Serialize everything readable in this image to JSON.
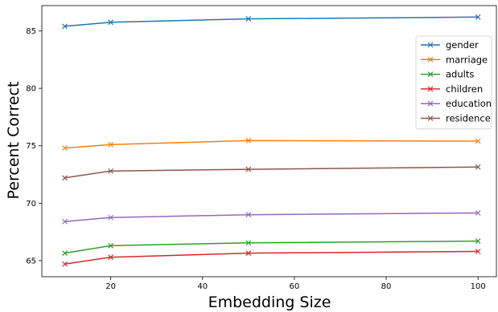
{
  "chart_data": {
    "type": "line",
    "title": "",
    "xlabel": "Embedding Size",
    "ylabel": "Percent Correct",
    "x": [
      10,
      20,
      50,
      100
    ],
    "xlim": [
      5,
      104
    ],
    "ylim": [
      63.6,
      87.2
    ],
    "xticks": [
      20,
      40,
      60,
      80,
      100
    ],
    "yticks": [
      65,
      70,
      75,
      80,
      85
    ],
    "grid": false,
    "legend_position": "upper-right",
    "series": [
      {
        "name": "gender",
        "color": "#1f77b4",
        "values": [
          85.4,
          85.75,
          86.05,
          86.2
        ]
      },
      {
        "name": "marriage",
        "color": "#ff7f0e",
        "values": [
          74.8,
          75.1,
          75.45,
          75.4
        ]
      },
      {
        "name": "adults",
        "color": "#2ca02c",
        "values": [
          65.65,
          66.3,
          66.55,
          66.7
        ]
      },
      {
        "name": "children",
        "color": "#d62728",
        "values": [
          64.7,
          65.3,
          65.65,
          65.8
        ]
      },
      {
        "name": "education",
        "color": "#9467bd",
        "values": [
          68.4,
          68.75,
          69.0,
          69.15
        ]
      },
      {
        "name": "residence",
        "color": "#8c564b",
        "values": [
          72.2,
          72.8,
          72.95,
          73.15
        ]
      }
    ]
  }
}
